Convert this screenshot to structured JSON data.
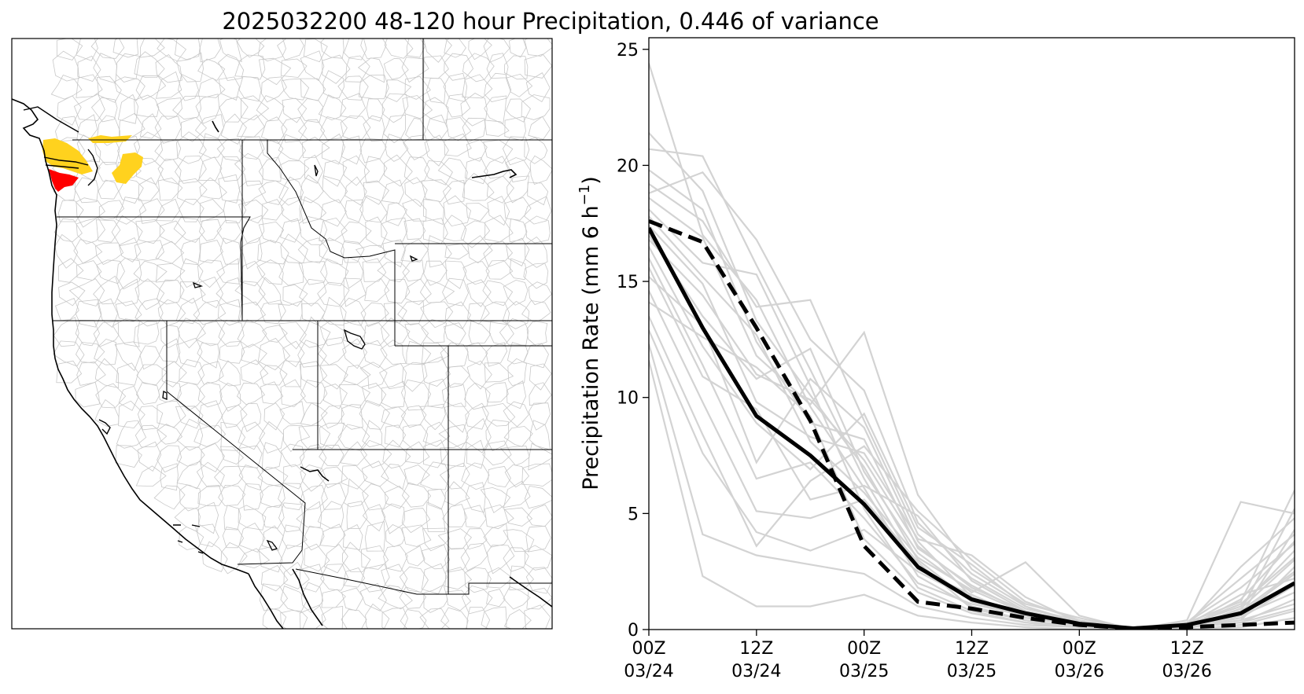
{
  "title": "2025032200 48-120 hour Precipitation, 0.446 of variance",
  "map": {
    "basin_line_color": "#c8c8c8",
    "coast_color": "#000000",
    "highlight_colors": {
      "high": "#ff0000",
      "medium": "#ffd21e"
    }
  },
  "chart_data": {
    "type": "line",
    "ylabel": "Precipitation Rate (mm 6 h⁻¹)",
    "ylabel_main": "Precipitation Rate (mm 6 h",
    "ylabel_sup": "−1",
    "ylabel_end": ")",
    "ylim": [
      0,
      25.5
    ],
    "xlim": [
      0,
      72
    ],
    "yticks": [
      0,
      5,
      10,
      15,
      20,
      25
    ],
    "xticks": [
      {
        "x": 0,
        "line1": "00Z",
        "line2": "03/24"
      },
      {
        "x": 12,
        "line1": "12Z",
        "line2": "03/24"
      },
      {
        "x": 24,
        "line1": "00Z",
        "line2": "03/25"
      },
      {
        "x": 36,
        "line1": "12Z",
        "line2": "03/25"
      },
      {
        "x": 48,
        "line1": "00Z",
        "line2": "03/26"
      },
      {
        "x": 60,
        "line1": "12Z",
        "line2": "03/26"
      }
    ],
    "x": [
      0,
      6,
      12,
      18,
      24,
      30,
      36,
      42,
      48,
      54,
      60,
      66,
      72
    ],
    "series": [
      {
        "style": "solid",
        "color": "#000000",
        "values": [
          17.3,
          13.0,
          9.2,
          7.5,
          5.4,
          2.7,
          1.3,
          0.7,
          0.25,
          0.05,
          0.2,
          0.7,
          2.0
        ]
      },
      {
        "style": "dashed",
        "color": "#000000",
        "values": [
          17.6,
          16.7,
          13.0,
          9.0,
          3.6,
          1.2,
          0.9,
          0.5,
          0.2,
          0.05,
          0.1,
          0.2,
          0.3
        ]
      }
    ],
    "ensemble_color": "#d3d3d3",
    "ensemble": [
      [
        24.4,
        17.0,
        14.2,
        9.6,
        6.1,
        2.3,
        1.0,
        0.4,
        0.1,
        0.0,
        0.1,
        0.6,
        4.3
      ],
      [
        21.4,
        18.9,
        13.3,
        10.1,
        7.0,
        3.0,
        1.2,
        0.6,
        0.2,
        0.0,
        0.2,
        1.0,
        3.4
      ],
      [
        20.7,
        20.4,
        15.7,
        11.2,
        6.5,
        2.6,
        1.5,
        0.5,
        0.3,
        0.0,
        0.1,
        0.4,
        2.7
      ],
      [
        19.8,
        18.1,
        12.4,
        8.9,
        8.2,
        3.5,
        1.9,
        0.7,
        0.2,
        0.0,
        0.0,
        0.8,
        5.2
      ],
      [
        19.2,
        17.6,
        13.9,
        14.2,
        9.0,
        4.1,
        2.2,
        0.9,
        0.4,
        0.0,
        0.3,
        1.2,
        6.0
      ],
      [
        18.6,
        16.9,
        11.8,
        9.7,
        12.8,
        5.8,
        2.6,
        1.1,
        0.5,
        0.0,
        0.2,
        2.7,
        4.8
      ],
      [
        18.1,
        15.8,
        15.3,
        10.5,
        5.2,
        1.8,
        0.8,
        0.3,
        0.1,
        0.0,
        0.1,
        0.5,
        1.9
      ],
      [
        17.4,
        14.9,
        9.8,
        8.3,
        7.6,
        3.9,
        3.2,
        1.4,
        0.3,
        0.0,
        0.4,
        5.5,
        5.0
      ],
      [
        17.0,
        13.5,
        10.8,
        12.1,
        6.8,
        3.3,
        1.6,
        2.9,
        0.6,
        0.0,
        0.2,
        1.5,
        2.2
      ],
      [
        16.5,
        12.2,
        8.9,
        6.9,
        9.3,
        4.4,
        2.8,
        1.0,
        0.2,
        0.0,
        0.1,
        0.9,
        3.0
      ],
      [
        16.0,
        11.4,
        6.5,
        7.2,
        4.8,
        2.0,
        1.1,
        0.6,
        0.1,
        0.0,
        0.1,
        0.3,
        1.3
      ],
      [
        15.6,
        10.9,
        9.5,
        5.6,
        6.2,
        4.9,
        2.1,
        0.8,
        0.3,
        0.0,
        0.2,
        0.7,
        2.4
      ],
      [
        15.2,
        13.1,
        7.2,
        10.8,
        8.7,
        3.8,
        1.4,
        0.5,
        0.2,
        0.0,
        0.3,
        1.8,
        3.7
      ],
      [
        14.6,
        9.8,
        5.1,
        4.8,
        5.6,
        2.9,
        0.9,
        0.4,
        0.1,
        0.0,
        0.1,
        0.4,
        1.1
      ],
      [
        14.1,
        12.6,
        11.3,
        9.2,
        3.9,
        1.6,
        0.7,
        0.3,
        0.1,
        0.0,
        0.0,
        0.2,
        0.8
      ],
      [
        13.5,
        8.4,
        3.6,
        6.4,
        7.9,
        5.1,
        3.0,
        1.2,
        0.4,
        0.0,
        0.3,
        2.2,
        4.1
      ],
      [
        12.9,
        7.6,
        4.2,
        3.4,
        4.3,
        2.5,
        1.3,
        0.6,
        0.2,
        0.0,
        0.1,
        0.6,
        1.6
      ],
      [
        12.3,
        4.1,
        3.2,
        2.8,
        2.4,
        1.0,
        0.5,
        0.2,
        0.1,
        0.0,
        0.1,
        0.3,
        0.9
      ],
      [
        11.6,
        2.3,
        1.0,
        1.0,
        1.5,
        0.6,
        0.3,
        0.1,
        0.0,
        0.0,
        0.0,
        0.1,
        0.5
      ],
      [
        18.8,
        19.7,
        16.8,
        12.5,
        10.3,
        4.6,
        2.4,
        1.0,
        0.3,
        0.0,
        0.2,
        1.1,
        3.1
      ],
      [
        17.8,
        15.2,
        12.7,
        8.1,
        5.9,
        3.1,
        1.7,
        0.7,
        0.2,
        0.0,
        0.2,
        0.8,
        2.5
      ],
      [
        16.8,
        14.4,
        11.0,
        9.9,
        7.3,
        3.6,
        1.8,
        0.8,
        0.3,
        0.0,
        0.1,
        1.3,
        3.8
      ]
    ]
  }
}
